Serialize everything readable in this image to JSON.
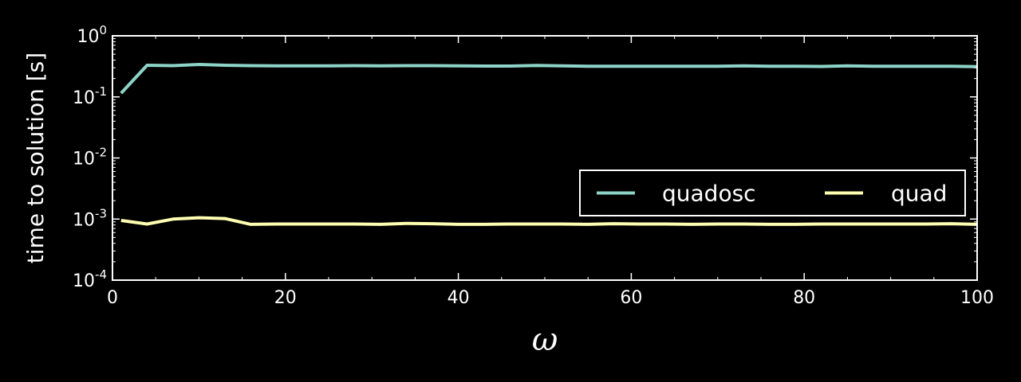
{
  "chart_data": {
    "type": "line",
    "title": "",
    "xlabel": "ω",
    "ylabel": "time to solution [s]",
    "xlim": [
      0,
      100
    ],
    "ylim": [
      0.0001,
      1
    ],
    "yscale": "log",
    "grid": false,
    "background": "#000000",
    "axis_color": "#ffffff",
    "legend": {
      "placement": "center-right",
      "columns": 2
    },
    "xticks": [
      "0",
      "20",
      "40",
      "60",
      "80",
      "100"
    ],
    "yticks": [
      {
        "base": "10",
        "exp": "-4",
        "value": 0.0001
      },
      {
        "base": "10",
        "exp": "-3",
        "value": 0.001
      },
      {
        "base": "10",
        "exp": "-2",
        "value": 0.01
      },
      {
        "base": "10",
        "exp": "-1",
        "value": 0.1
      },
      {
        "base": "10",
        "exp": "0",
        "value": 1
      }
    ],
    "series": [
      {
        "name": "quadosc",
        "color": "#8dd3c7",
        "x": [
          1,
          4,
          7,
          10,
          13,
          16,
          19,
          22,
          25,
          28,
          31,
          34,
          37,
          40,
          43,
          46,
          49,
          52,
          55,
          58,
          61,
          64,
          67,
          70,
          73,
          76,
          79,
          82,
          85,
          88,
          91,
          94,
          97,
          100
        ],
        "y": [
          0.115,
          0.33,
          0.325,
          0.34,
          0.33,
          0.325,
          0.322,
          0.322,
          0.322,
          0.325,
          0.322,
          0.325,
          0.325,
          0.322,
          0.32,
          0.32,
          0.328,
          0.322,
          0.318,
          0.318,
          0.318,
          0.318,
          0.318,
          0.318,
          0.322,
          0.318,
          0.318,
          0.315,
          0.322,
          0.318,
          0.318,
          0.318,
          0.318,
          0.312
        ]
      },
      {
        "name": "quad",
        "color": "#ffffb3",
        "x": [
          1,
          4,
          7,
          10,
          13,
          16,
          19,
          22,
          25,
          28,
          31,
          34,
          37,
          40,
          43,
          46,
          49,
          52,
          55,
          58,
          61,
          64,
          67,
          70,
          73,
          76,
          79,
          82,
          85,
          88,
          91,
          94,
          97,
          100
        ],
        "y": [
          0.00095,
          0.00083,
          0.001,
          0.00105,
          0.00102,
          0.00082,
          0.00083,
          0.00083,
          0.00083,
          0.00083,
          0.00082,
          0.00085,
          0.00084,
          0.00082,
          0.00082,
          0.00083,
          0.00083,
          0.00083,
          0.00082,
          0.00084,
          0.00083,
          0.00083,
          0.00082,
          0.00083,
          0.00083,
          0.00082,
          0.00082,
          0.00083,
          0.00083,
          0.00083,
          0.00083,
          0.00083,
          0.00084,
          0.00082
        ]
      }
    ]
  }
}
